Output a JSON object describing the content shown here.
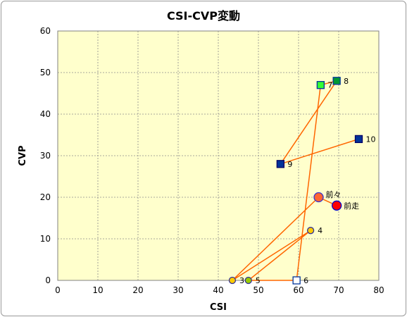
{
  "chart_data": {
    "type": "scatter",
    "title": "CSI-CVP変動",
    "xlabel": "CSI",
    "ylabel": "CVP",
    "xlim": [
      0,
      80
    ],
    "ylim": [
      0,
      60
    ],
    "xticks": [
      0,
      10,
      20,
      30,
      40,
      50,
      60,
      70,
      80
    ],
    "yticks": [
      0,
      10,
      20,
      30,
      40,
      50,
      60
    ],
    "grid": true,
    "plot_background": "#ffffcc",
    "line_color": "#ff6600",
    "sequence": [
      "10",
      "9",
      "8",
      "7",
      "6",
      "5",
      "4",
      "3",
      "前々",
      "前走"
    ],
    "points": [
      {
        "label": "前走",
        "x": 69.5,
        "y": 18,
        "shape": "circle",
        "fill": "#ff0000",
        "stroke": "#0000cc"
      },
      {
        "label": "前々",
        "x": 65,
        "y": 20,
        "shape": "circle",
        "fill": "#ff6633",
        "stroke": "#3333cc"
      },
      {
        "label": "3",
        "x": 43.5,
        "y": 0,
        "shape": "circle",
        "fill": "#ffcc00",
        "stroke": "#333399"
      },
      {
        "label": "4",
        "x": 63,
        "y": 12,
        "shape": "circle",
        "fill": "#ffcc00",
        "stroke": "#333399"
      },
      {
        "label": "5",
        "x": 47.5,
        "y": 0,
        "shape": "circle",
        "fill": "#99cc00",
        "stroke": "#333399"
      },
      {
        "label": "6",
        "x": 59.5,
        "y": 0,
        "shape": "square",
        "fill": "#ffffff",
        "stroke": "#003399"
      },
      {
        "label": "7",
        "x": 65.5,
        "y": 47,
        "shape": "square",
        "fill": "#33ff33",
        "stroke": "#003399"
      },
      {
        "label": "8",
        "x": 69.5,
        "y": 48,
        "shape": "square",
        "fill": "#009933",
        "stroke": "#003399"
      },
      {
        "label": "9",
        "x": 55.5,
        "y": 28,
        "shape": "square",
        "fill": "#003399",
        "stroke": "#000066"
      },
      {
        "label": "10",
        "x": 75,
        "y": 34,
        "shape": "square",
        "fill": "#003399",
        "stroke": "#000066"
      }
    ]
  }
}
